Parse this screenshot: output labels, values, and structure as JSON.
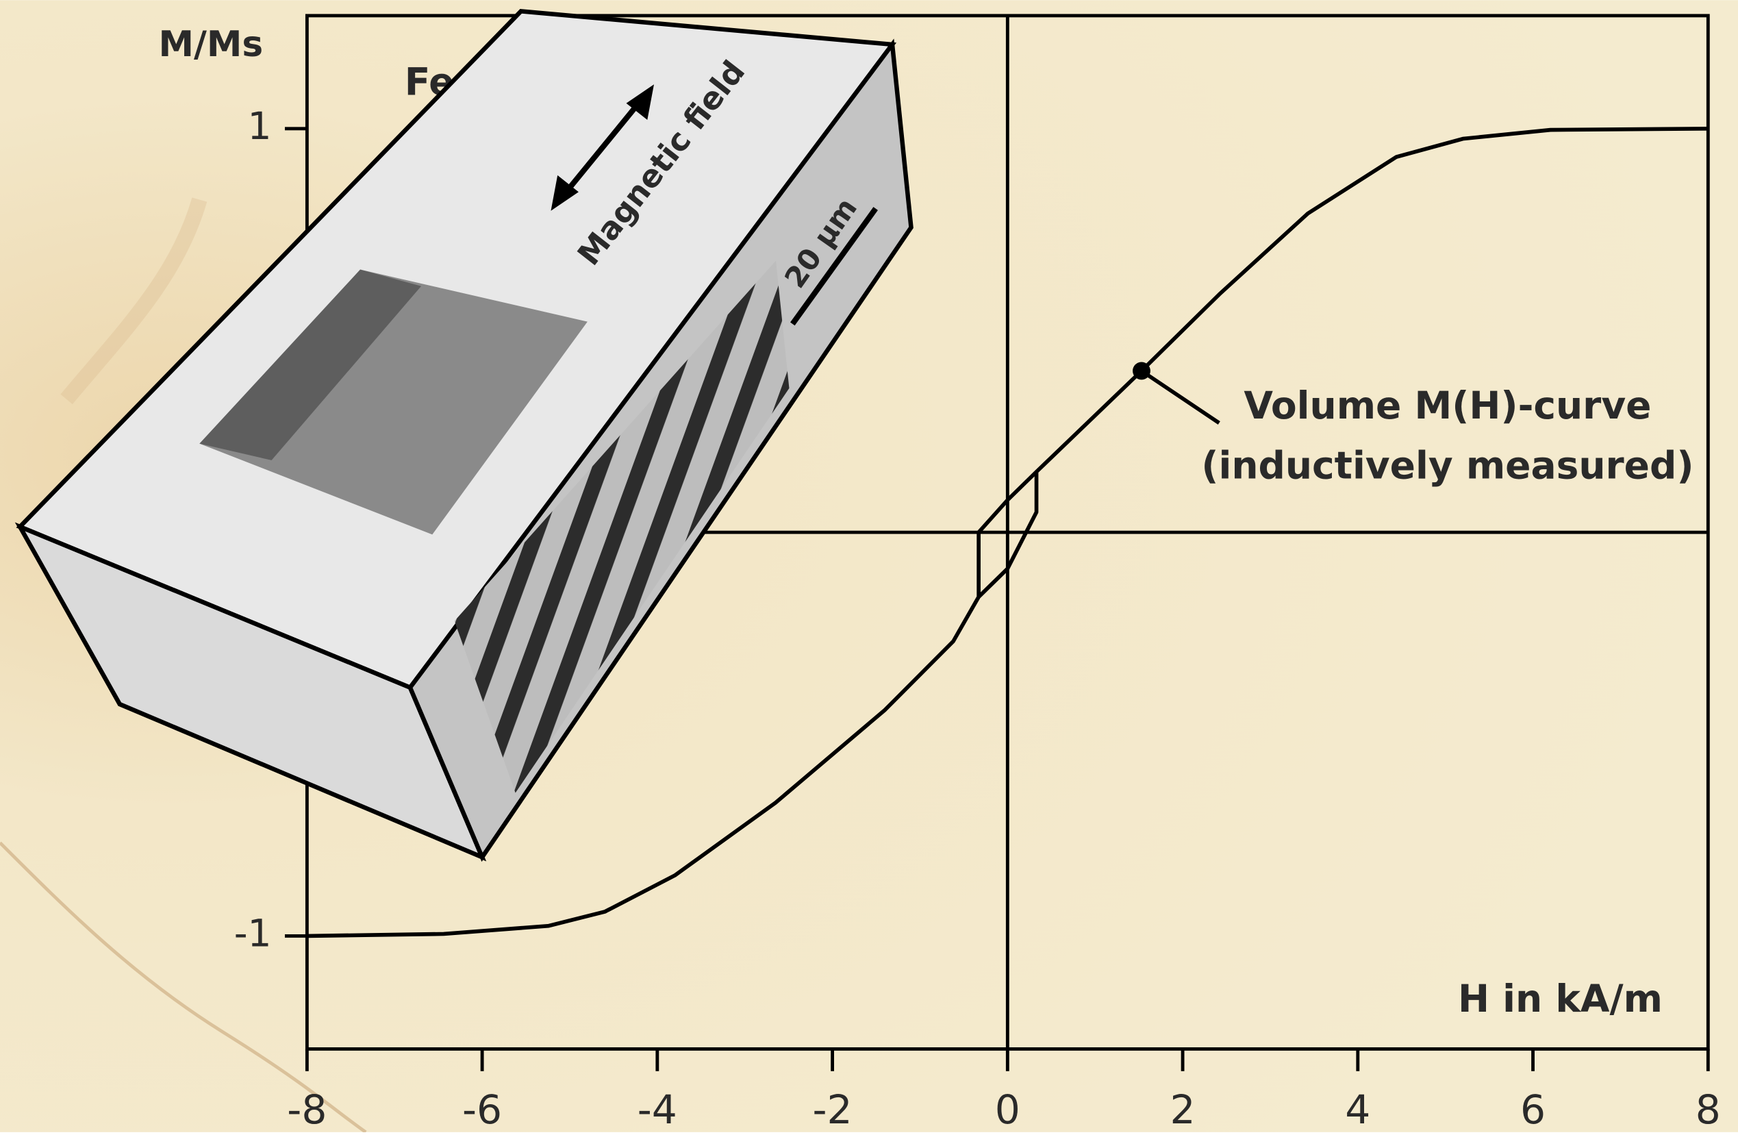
{
  "chart_data": {
    "type": "line",
    "y_label": "M/Ms",
    "x_label": "H in kA/m",
    "sample_label": "Fe",
    "xlim": [
      -8,
      8
    ],
    "ylim": [
      -1.28,
      1.28
    ],
    "xticks": [
      -8,
      -6,
      -4,
      -2,
      0,
      2,
      4,
      6,
      8
    ],
    "yticks": [
      -1,
      1
    ],
    "series": [
      {
        "color": "#000000",
        "x": [
          -8,
          -6.44,
          -5.24,
          -4.6,
          -3.8,
          -2.65,
          -1.4,
          -0.62,
          -0.33,
          0,
          0.33,
          0.33,
          1.53,
          2.42,
          3.43,
          4.44,
          5.2,
          6.2,
          8,
          null,
          -0.33,
          -0.33,
          0,
          0.33
        ],
        "values": [
          -1,
          -0.995,
          -0.975,
          -0.94,
          -0.85,
          -0.67,
          -0.44,
          -0.27,
          -0.16,
          -0.09,
          0.05,
          0.15,
          0.4,
          0.59,
          0.79,
          0.93,
          0.975,
          0.997,
          1,
          null,
          -0.16,
          0,
          0.08,
          0.15
        ]
      }
    ],
    "annotation": {
      "lines": [
        "Volume M(H)-curve",
        "(inductively measured)"
      ],
      "x": 1.53,
      "y": 0.4
    },
    "inset": {
      "arrow_label": "Magnetic field",
      "scale_label": "20 µm"
    }
  }
}
